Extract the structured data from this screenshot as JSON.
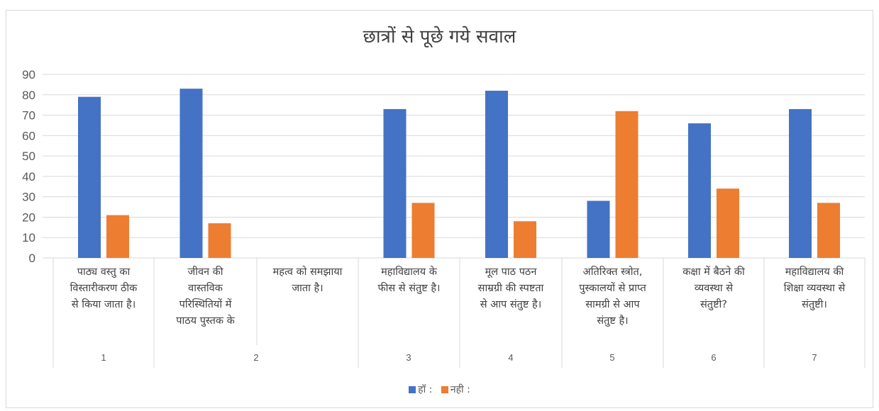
{
  "chart_data": {
    "type": "bar",
    "title": "छात्रों से पूछे गये सवाल",
    "ylim": [
      0,
      90
    ],
    "yticks": [
      0,
      10,
      20,
      30,
      40,
      50,
      60,
      70,
      80,
      90
    ],
    "grid": true,
    "legend_position": "bottom",
    "categories": [
      {
        "group": "1",
        "label_lines": [
          "पाठ्य वस्तु का",
          "विस्तारीकरण ठीक",
          "से किया जाता है।"
        ]
      },
      {
        "group": "2",
        "label_lines": [
          "जीवन की",
          "वास्तविक",
          "परिस्थितियों में",
          "पाठय पुस्तक के"
        ]
      },
      {
        "group": "2",
        "label_lines": [
          "महत्व को समझाया",
          "जाता है।"
        ]
      },
      {
        "group": "3",
        "label_lines": [
          "महाविद्यालय के",
          "फीस से संतुष्ट है।"
        ]
      },
      {
        "group": "4",
        "label_lines": [
          "मूल पाठ पठन",
          "साम्रग्री की स्पष्टता",
          "से आप संतुष्ट है।"
        ]
      },
      {
        "group": "5",
        "label_lines": [
          "अतिरिक्त स्त्रोत,",
          "पुस्कालयों से प्राप्त",
          "सामग्री से आप",
          "संतुष्ट है।"
        ]
      },
      {
        "group": "6",
        "label_lines": [
          "कक्षा में बैठने की",
          "व्यवस्था से",
          "संतुष्टी?"
        ]
      },
      {
        "group": "7",
        "label_lines": [
          "महाविद्यालय की",
          "शिक्षा व्यवस्था से",
          "संतुष्टी।"
        ]
      }
    ],
    "groups": [
      "1",
      "2",
      "3",
      "4",
      "5",
      "6",
      "7"
    ],
    "series": [
      {
        "name": "हॉ :",
        "color": "#4472C4",
        "values": [
          79,
          83,
          null,
          73,
          82,
          28,
          66,
          73
        ]
      },
      {
        "name": "नही :",
        "color": "#ED7D31",
        "values": [
          21,
          17,
          null,
          27,
          18,
          72,
          34,
          27
        ]
      }
    ]
  }
}
